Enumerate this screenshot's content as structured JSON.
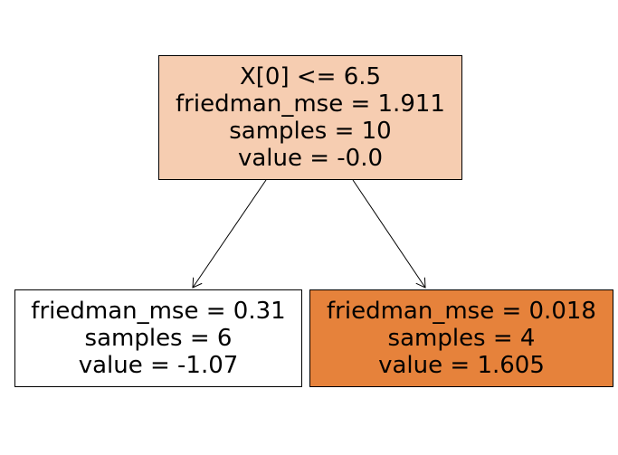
{
  "tree": {
    "nodes": [
      {
        "id": "root",
        "lines": [
          "X[0] <= 6.5",
          "friedman_mse = 1.911",
          "samples = 10",
          "value = -0.0"
        ],
        "fill": "#f6cdb1"
      },
      {
        "id": "left",
        "lines": [
          "friedman_mse = 0.31",
          "samples = 6",
          "value = -1.07"
        ],
        "fill": "#ffffff"
      },
      {
        "id": "right",
        "lines": [
          "friedman_mse = 0.018",
          "samples = 4",
          "value = 1.605"
        ],
        "fill": "#e6823b"
      }
    ],
    "edges": [
      {
        "from": "root",
        "to": "left"
      },
      {
        "from": "root",
        "to": "right"
      }
    ]
  }
}
